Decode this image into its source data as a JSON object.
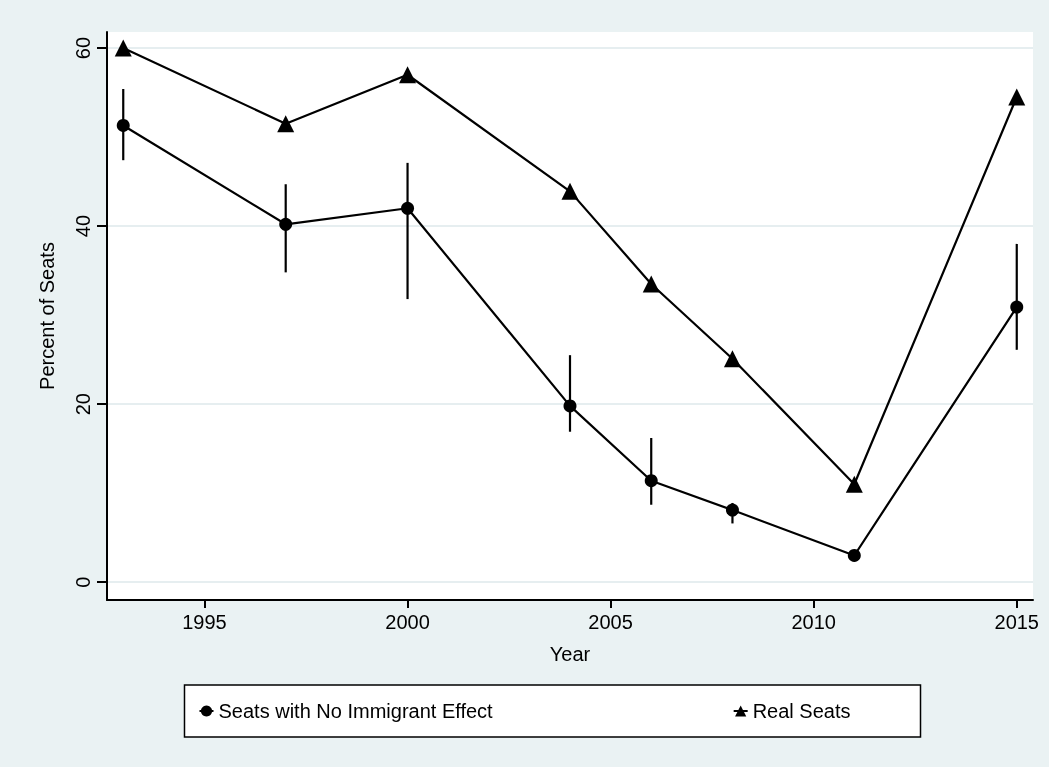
{
  "chart_data": {
    "type": "line",
    "xlabel": "Year",
    "ylabel": "Percent of Seats",
    "x": [
      1993,
      1997,
      2000,
      2004,
      2006,
      2008,
      2011,
      2015
    ],
    "xlim": [
      1992.6,
      2015.4
    ],
    "xticks": [
      1995,
      2000,
      2005,
      2010,
      2015
    ],
    "ylim": [
      -2,
      61.8
    ],
    "yticks": [
      0,
      20,
      40,
      60
    ],
    "grid": "y",
    "legend": "bottom",
    "series": [
      {
        "name": "Seats with No Immigrant Effect",
        "color": "#000000",
        "marker": "circle",
        "values": [
          51.3,
          40.2,
          42.0,
          19.8,
          11.4,
          8.1,
          3.0,
          30.9
        ],
        "errors": [
          [
            47.4,
            55.4
          ],
          [
            34.8,
            44.7
          ],
          [
            31.8,
            47.1
          ],
          [
            16.9,
            25.5
          ],
          [
            8.7,
            16.2
          ],
          [
            6.6,
            8.9
          ],
          null,
          [
            26.1,
            38.0
          ]
        ]
      },
      {
        "name": "Real Seats",
        "color": "#000000",
        "marker": "triangle",
        "values": [
          60.0,
          51.5,
          57.0,
          43.9,
          33.5,
          25.1,
          11.0,
          54.5
        ]
      }
    ]
  }
}
